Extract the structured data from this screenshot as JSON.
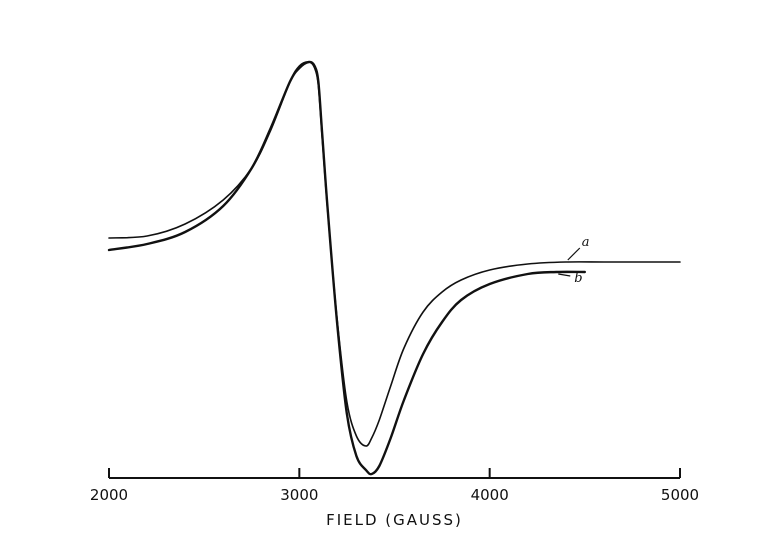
{
  "chart_data": {
    "type": "line",
    "title": "",
    "xlabel": "FIELD (GAUSS)",
    "ylabel": "",
    "xlim": [
      2000,
      5000
    ],
    "xticks": [
      2000,
      3000,
      4000,
      5000
    ],
    "xtick_labels": [
      "2000",
      "3000",
      "4000",
      "5000"
    ],
    "y_axis_shown": false,
    "grid": false,
    "legend": "none",
    "series": [
      {
        "name": "a",
        "x": [
          2000,
          2200,
          2400,
          2600,
          2750,
          2850,
          2950,
          3000,
          3050,
          3080,
          3100,
          3120,
          3150,
          3200,
          3250,
          3300,
          3350,
          3380,
          3420,
          3480,
          3550,
          3650,
          3750,
          3850,
          4000,
          4200,
          4400,
          4600,
          4800,
          5000
        ],
        "y": [
          0.12,
          0.13,
          0.19,
          0.31,
          0.47,
          0.66,
          0.9,
          0.98,
          1.0,
          0.97,
          0.88,
          0.62,
          0.24,
          -0.3,
          -0.7,
          -0.87,
          -0.92,
          -0.88,
          -0.79,
          -0.62,
          -0.43,
          -0.25,
          -0.15,
          -0.09,
          -0.04,
          -0.01,
          0.0,
          0.0,
          0.0,
          0.0
        ]
      },
      {
        "name": "b",
        "x": [
          2000,
          2200,
          2400,
          2600,
          2750,
          2850,
          2950,
          3000,
          3050,
          3080,
          3100,
          3120,
          3150,
          3200,
          3250,
          3300,
          3350,
          3380,
          3420,
          3480,
          3550,
          3650,
          3750,
          3850,
          4000,
          4200,
          4350,
          4500
        ],
        "y": [
          0.06,
          0.09,
          0.15,
          0.28,
          0.47,
          0.67,
          0.9,
          0.97,
          1.0,
          0.98,
          0.9,
          0.64,
          0.25,
          -0.32,
          -0.76,
          -0.97,
          -1.04,
          -1.06,
          -1.02,
          -0.88,
          -0.69,
          -0.46,
          -0.3,
          -0.19,
          -0.11,
          -0.06,
          -0.05,
          -0.05
        ]
      }
    ]
  }
}
